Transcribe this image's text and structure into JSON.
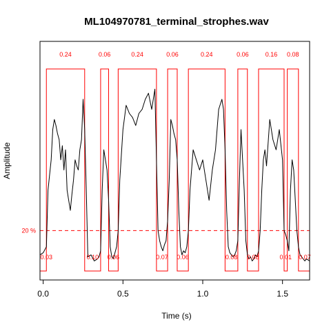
{
  "chart_data": {
    "type": "line",
    "title": "ML104970781_terminal_strophes.wav",
    "xlabel": "Time (s)",
    "ylabel": "Amplitude",
    "xlim": [
      -0.02,
      1.67
    ],
    "ylim": [
      0,
      1
    ],
    "xticks": [
      0.0,
      0.5,
      1.0,
      1.5
    ],
    "xtick_labels": [
      "0.0",
      "0.5",
      "1.0",
      "1.5"
    ],
    "threshold": {
      "label": "20 %",
      "value": 0.2,
      "color": "#ff0000"
    },
    "colors": {
      "envelope": "#000000",
      "segments": "#ff0000",
      "frame": "#000000"
    },
    "segments": [
      {
        "start": 0.02,
        "end": 0.26,
        "duration_label": "0.24"
      },
      {
        "start": 0.36,
        "end": 0.41,
        "duration_label": "0.06"
      },
      {
        "start": 0.47,
        "end": 0.71,
        "duration_label": "0.24"
      },
      {
        "start": 0.78,
        "end": 0.84,
        "duration_label": "0.06"
      },
      {
        "start": 0.91,
        "end": 1.14,
        "duration_label": "0.24"
      },
      {
        "start": 1.22,
        "end": 1.28,
        "duration_label": "0.06"
      },
      {
        "start": 1.35,
        "end": 1.51,
        "duration_label": "0.16"
      },
      {
        "start": 1.53,
        "end": 1.6,
        "duration_label": "0.08"
      }
    ],
    "gaps": [
      {
        "position": 0.02,
        "label": "0.03"
      },
      {
        "position": 0.31,
        "label": "0.10"
      },
      {
        "position": 0.44,
        "label": "0.06"
      },
      {
        "position": 0.745,
        "label": "0.07"
      },
      {
        "position": 0.875,
        "label": "0.06"
      },
      {
        "position": 1.18,
        "label": "0.08"
      },
      {
        "position": 1.315,
        "label": "0.08"
      },
      {
        "position": 1.52,
        "label": "0.01"
      },
      {
        "position": 1.64,
        "label": "0.07"
      }
    ],
    "envelope": {
      "x": [
        -0.02,
        0.0,
        0.02,
        0.03,
        0.05,
        0.06,
        0.07,
        0.08,
        0.09,
        0.1,
        0.11,
        0.12,
        0.13,
        0.14,
        0.15,
        0.16,
        0.17,
        0.18,
        0.19,
        0.2,
        0.21,
        0.22,
        0.23,
        0.24,
        0.25,
        0.26,
        0.27,
        0.28,
        0.3,
        0.32,
        0.34,
        0.35,
        0.36,
        0.37,
        0.38,
        0.39,
        0.4,
        0.41,
        0.42,
        0.43,
        0.44,
        0.45,
        0.46,
        0.47,
        0.48,
        0.5,
        0.52,
        0.54,
        0.56,
        0.58,
        0.6,
        0.62,
        0.64,
        0.66,
        0.68,
        0.7,
        0.71,
        0.72,
        0.73,
        0.74,
        0.75,
        0.76,
        0.77,
        0.78,
        0.79,
        0.8,
        0.81,
        0.82,
        0.83,
        0.84,
        0.85,
        0.86,
        0.87,
        0.88,
        0.89,
        0.9,
        0.91,
        0.92,
        0.94,
        0.96,
        0.98,
        1.0,
        1.02,
        1.04,
        1.06,
        1.08,
        1.1,
        1.12,
        1.13,
        1.14,
        1.15,
        1.16,
        1.17,
        1.18,
        1.19,
        1.2,
        1.21,
        1.22,
        1.23,
        1.24,
        1.25,
        1.26,
        1.27,
        1.28,
        1.29,
        1.3,
        1.31,
        1.32,
        1.33,
        1.34,
        1.35,
        1.36,
        1.37,
        1.38,
        1.39,
        1.4,
        1.42,
        1.44,
        1.46,
        1.48,
        1.5,
        1.51,
        1.52,
        1.53,
        1.54,
        1.55,
        1.56,
        1.57,
        1.58,
        1.59,
        1.6,
        1.61,
        1.62,
        1.63,
        1.64,
        1.65,
        1.67
      ],
      "y": [
        0.08,
        0.09,
        0.12,
        0.4,
        0.55,
        0.7,
        0.75,
        0.72,
        0.68,
        0.65,
        0.55,
        0.62,
        0.5,
        0.6,
        0.4,
        0.35,
        0.3,
        0.38,
        0.45,
        0.55,
        0.52,
        0.5,
        0.6,
        0.65,
        0.85,
        0.7,
        0.4,
        0.07,
        0.08,
        0.05,
        0.06,
        0.07,
        0.1,
        0.4,
        0.6,
        0.55,
        0.5,
        0.35,
        0.12,
        0.07,
        0.06,
        0.09,
        0.12,
        0.2,
        0.45,
        0.7,
        0.82,
        0.78,
        0.76,
        0.72,
        0.78,
        0.8,
        0.85,
        0.88,
        0.8,
        0.9,
        0.55,
        0.2,
        0.15,
        0.12,
        0.1,
        0.13,
        0.15,
        0.25,
        0.45,
        0.75,
        0.72,
        0.68,
        0.65,
        0.55,
        0.3,
        0.12,
        0.08,
        0.1,
        0.09,
        0.12,
        0.2,
        0.4,
        0.6,
        0.55,
        0.5,
        0.55,
        0.45,
        0.35,
        0.5,
        0.6,
        0.8,
        0.85,
        0.8,
        0.6,
        0.3,
        0.12,
        0.09,
        0.08,
        0.07,
        0.08,
        0.1,
        0.15,
        0.45,
        0.7,
        0.55,
        0.4,
        0.15,
        0.08,
        0.06,
        0.07,
        0.05,
        0.06,
        0.08,
        0.07,
        0.1,
        0.2,
        0.4,
        0.55,
        0.6,
        0.52,
        0.75,
        0.65,
        0.6,
        0.7,
        0.55,
        0.2,
        0.18,
        0.15,
        0.1,
        0.4,
        0.55,
        0.5,
        0.35,
        0.2,
        0.12,
        0.08,
        0.07,
        0.06,
        0.05,
        0.06,
        0.05
      ]
    }
  }
}
